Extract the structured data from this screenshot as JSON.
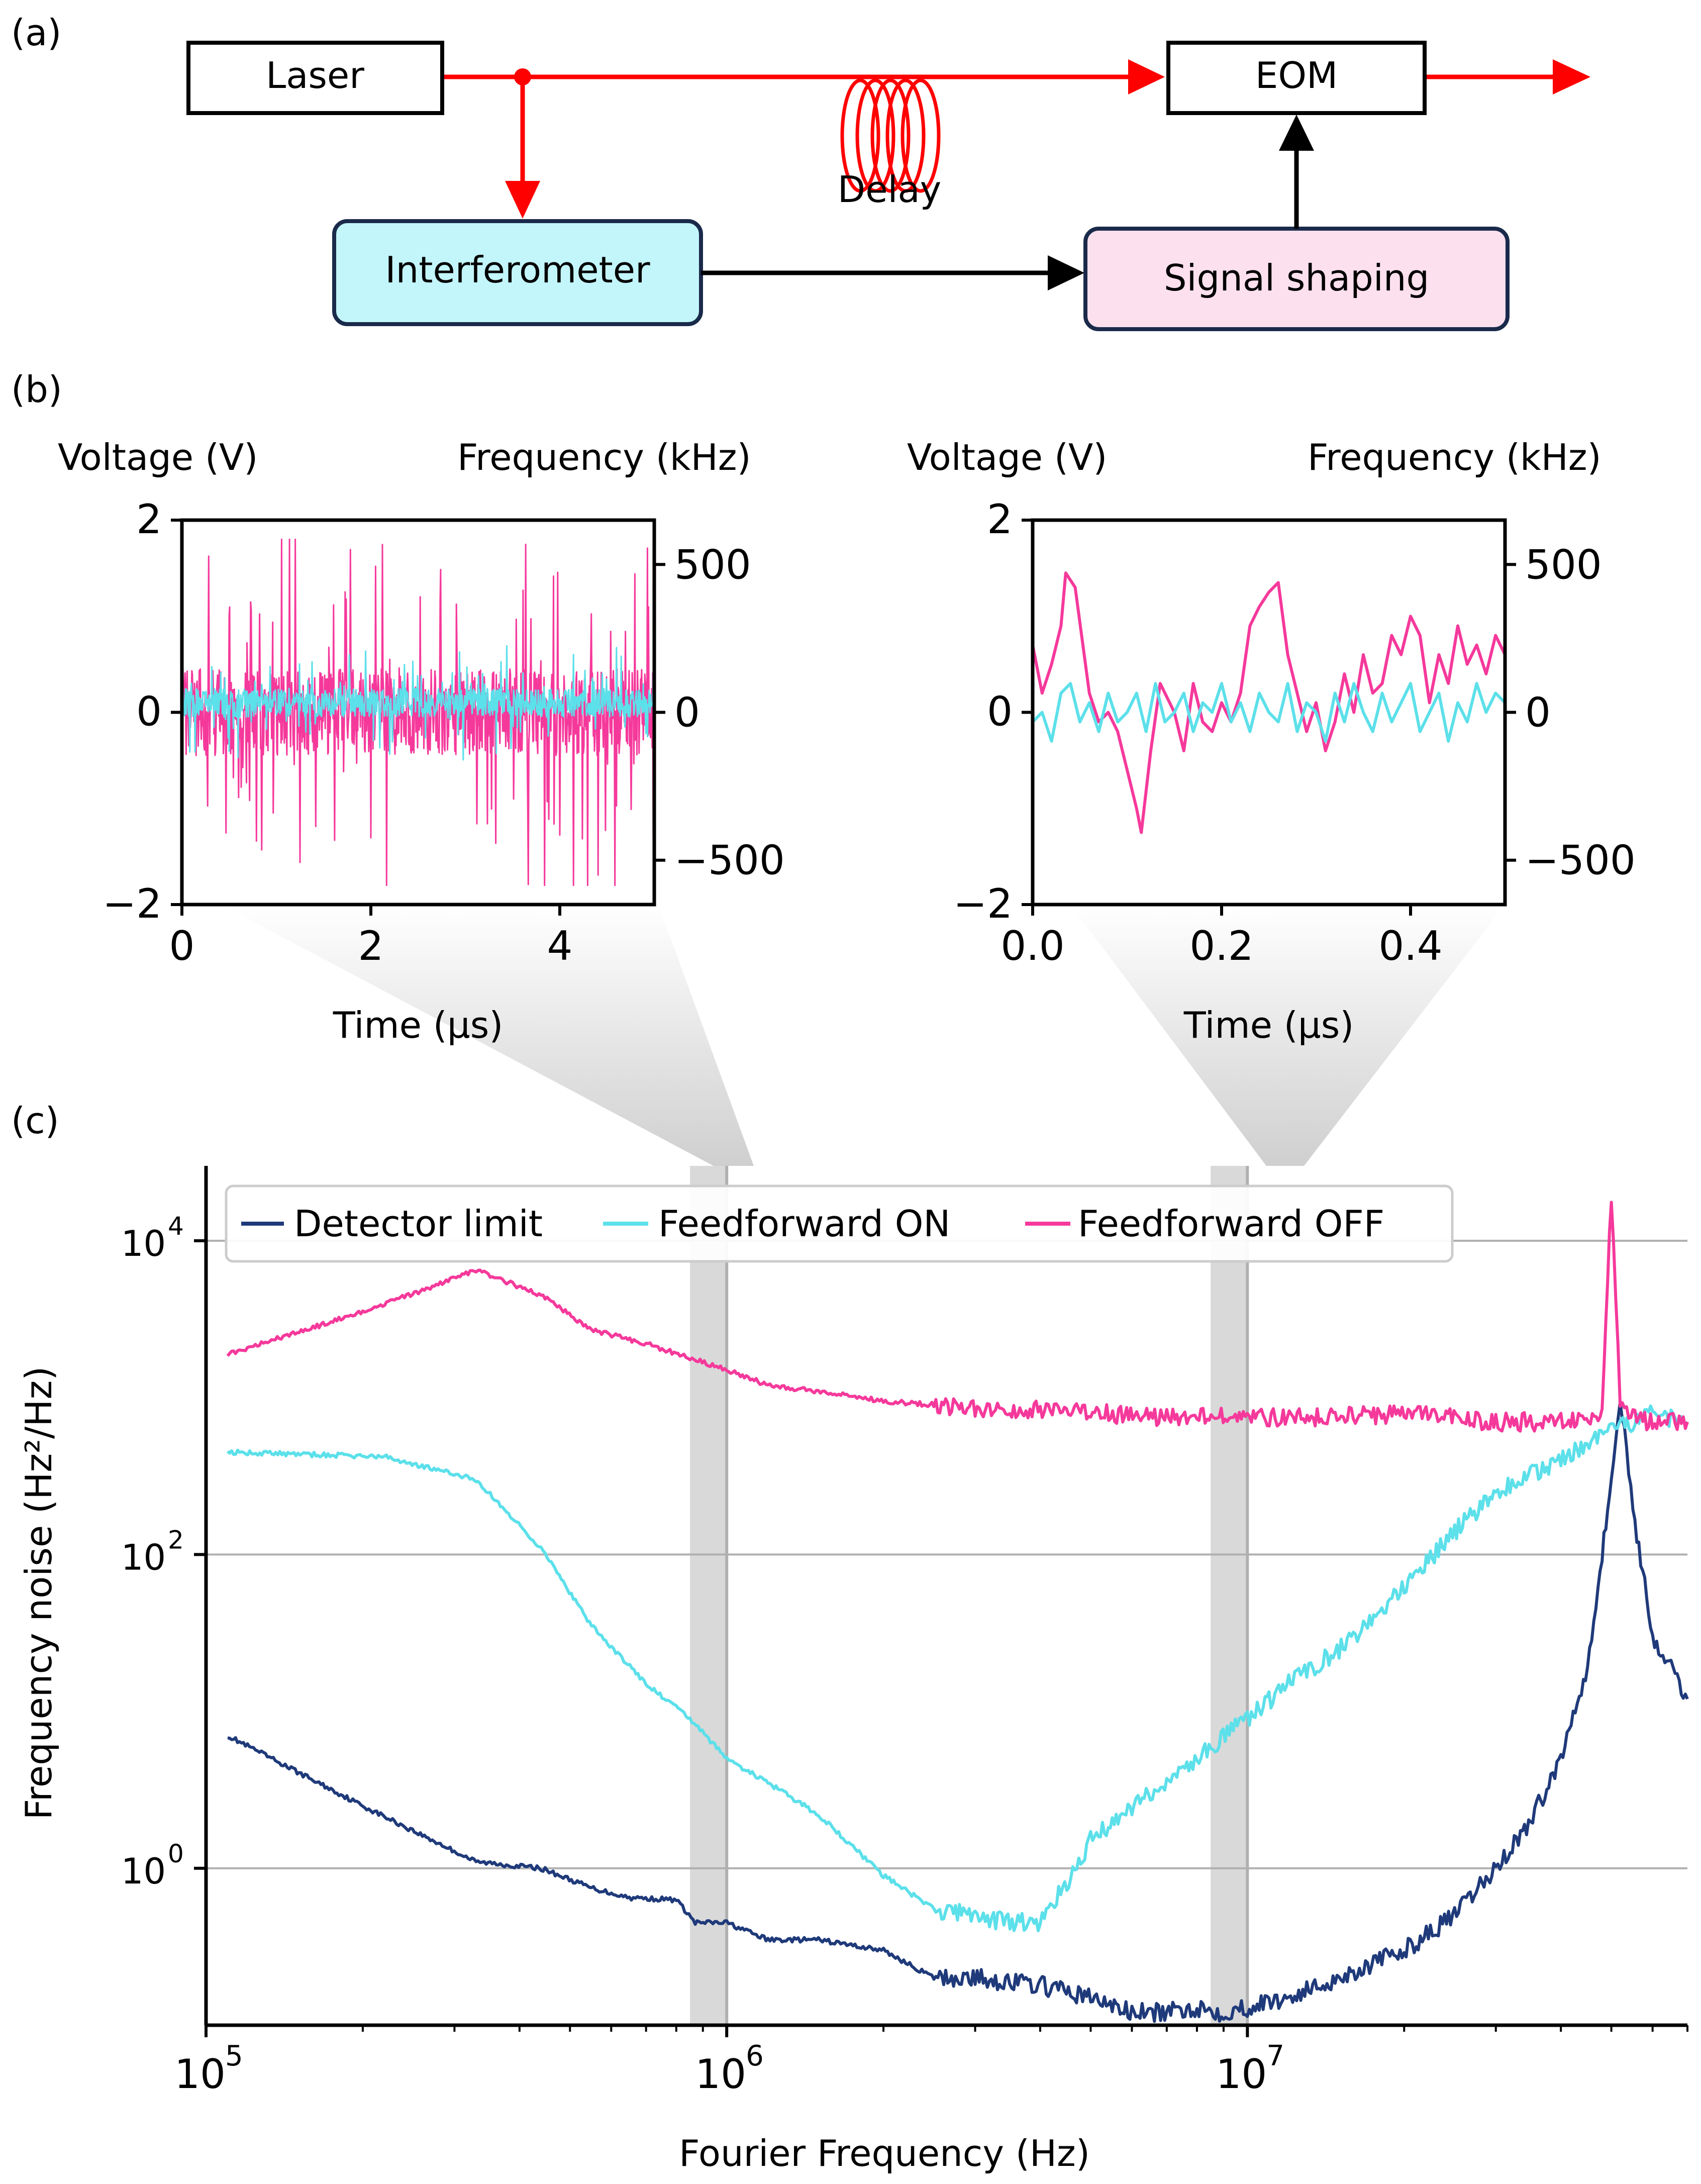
{
  "panels": {
    "a": "(a)",
    "b": "(b)",
    "c": "(c)"
  },
  "diagram": {
    "laser": "Laser",
    "eom": "EOM",
    "interferometer": "Interferometer",
    "signal_shaping": "Signal shaping",
    "delay": "Delay",
    "colors": {
      "beam": "#ff0000",
      "wire": "#000000",
      "interferometer_fill": "#c3f6fb",
      "shaping_fill": "#fde0ee",
      "box_edge": "#1a2a4a"
    }
  },
  "chart_data": [
    {
      "id": "b-left",
      "type": "line",
      "title": "",
      "xlabel": "Time (µs)",
      "ylabel": "Voltage (V)",
      "y2label": "Frequency (kHz)",
      "xlim": [
        0,
        5
      ],
      "ylim": [
        -2,
        2
      ],
      "y2lim": [
        -650,
        650
      ],
      "xticks": [
        "0",
        "2",
        "4"
      ],
      "yticks": [
        "−2",
        "0",
        "2"
      ],
      "y2ticks": [
        "−500",
        "0",
        "500"
      ],
      "series": [
        {
          "name": "Feedforward OFF",
          "color": "#f5399b",
          "amplitude_V": 1.8,
          "noise_rms_V": 0.45,
          "mean_V": 0.0
        },
        {
          "name": "Feedforward ON",
          "color": "#5ce0ea",
          "amplitude_V": 0.5,
          "noise_rms_V": 0.15,
          "mean_V": 0.1
        }
      ]
    },
    {
      "id": "b-right",
      "type": "line",
      "title": "",
      "xlabel": "Time (µs)",
      "ylabel": "Voltage (V)",
      "y2label": "Frequency (kHz)",
      "xlim": [
        0,
        0.5
      ],
      "ylim": [
        -2,
        2
      ],
      "y2lim": [
        -650,
        650
      ],
      "xticks": [
        "0.0",
        "0.2",
        "0.4"
      ],
      "yticks": [
        "−2",
        "0",
        "2"
      ],
      "y2ticks": [
        "−500",
        "0",
        "500"
      ],
      "series": [
        {
          "name": "Feedforward OFF",
          "color": "#f5399b",
          "x": [
            0.0,
            0.01,
            0.02,
            0.03,
            0.035,
            0.045,
            0.06,
            0.07,
            0.08,
            0.09,
            0.1,
            0.11,
            0.115,
            0.125,
            0.135,
            0.15,
            0.16,
            0.17,
            0.18,
            0.19,
            0.2,
            0.21,
            0.22,
            0.23,
            0.24,
            0.25,
            0.26,
            0.27,
            0.28,
            0.29,
            0.3,
            0.31,
            0.32,
            0.33,
            0.34,
            0.35,
            0.36,
            0.37,
            0.38,
            0.39,
            0.4,
            0.41,
            0.42,
            0.43,
            0.44,
            0.45,
            0.46,
            0.47,
            0.48,
            0.49,
            0.5
          ],
          "y": [
            0.7,
            0.2,
            0.5,
            0.9,
            1.45,
            1.3,
            0.2,
            -0.1,
            0.0,
            -0.2,
            -0.6,
            -1.0,
            -1.25,
            -0.4,
            0.3,
            0.0,
            -0.4,
            0.3,
            -0.1,
            -0.2,
            0.1,
            -0.1,
            0.2,
            0.9,
            1.1,
            1.25,
            1.35,
            0.6,
            0.2,
            -0.2,
            0.1,
            -0.4,
            -0.1,
            0.4,
            0.0,
            0.6,
            0.2,
            0.3,
            0.8,
            0.6,
            1.0,
            0.8,
            0.1,
            0.6,
            0.3,
            0.9,
            0.5,
            0.7,
            0.4,
            0.8,
            0.6
          ]
        },
        {
          "name": "Feedforward ON",
          "color": "#5ce0ea",
          "x": [
            0.0,
            0.01,
            0.02,
            0.03,
            0.04,
            0.05,
            0.06,
            0.07,
            0.08,
            0.09,
            0.1,
            0.11,
            0.12,
            0.13,
            0.14,
            0.15,
            0.16,
            0.17,
            0.18,
            0.19,
            0.2,
            0.21,
            0.22,
            0.23,
            0.24,
            0.25,
            0.26,
            0.27,
            0.28,
            0.29,
            0.3,
            0.31,
            0.32,
            0.33,
            0.34,
            0.35,
            0.36,
            0.37,
            0.38,
            0.39,
            0.4,
            0.41,
            0.42,
            0.43,
            0.44,
            0.45,
            0.46,
            0.47,
            0.48,
            0.49,
            0.5
          ],
          "y": [
            -0.1,
            0.0,
            -0.3,
            0.2,
            0.3,
            -0.1,
            0.1,
            -0.2,
            0.2,
            -0.1,
            0.0,
            0.2,
            -0.2,
            0.3,
            -0.1,
            0.0,
            0.2,
            -0.2,
            0.1,
            0.0,
            0.3,
            -0.1,
            0.1,
            -0.2,
            0.2,
            0.0,
            -0.1,
            0.3,
            -0.2,
            0.1,
            0.0,
            -0.3,
            0.2,
            -0.1,
            0.3,
            0.0,
            -0.2,
            0.2,
            -0.1,
            0.1,
            0.3,
            -0.2,
            0.0,
            0.2,
            -0.3,
            0.1,
            -0.1,
            0.3,
            0.0,
            0.2,
            0.1
          ]
        }
      ]
    },
    {
      "id": "c",
      "type": "line",
      "title": "",
      "xlabel": "Fourier Frequency (Hz)",
      "ylabel": "Frequency noise (Hz²/Hz)",
      "xscale": "log",
      "yscale": "log",
      "xlim": [
        100000,
        70000000
      ],
      "ylim": [
        0.1,
        30000
      ],
      "xticks": [
        {
          "base": "10",
          "exp": "5",
          "value": 100000
        },
        {
          "base": "10",
          "exp": "6",
          "value": 1000000
        },
        {
          "base": "10",
          "exp": "7",
          "value": 10000000
        }
      ],
      "yticks": [
        {
          "base": "10",
          "exp": "0",
          "value": 1
        },
        {
          "base": "10",
          "exp": "2",
          "value": 100
        },
        {
          "base": "10",
          "exp": "4",
          "value": 10000
        }
      ],
      "grid": "y",
      "legend_position": "top",
      "highlight_bands": [
        [
          850000,
          1000000
        ],
        [
          8500000,
          10000000
        ]
      ],
      "series": [
        {
          "name": "Detector limit",
          "color": "#1f3a7a",
          "x": [
            110000,
            200000,
            330000,
            440000,
            550000,
            650000,
            800000,
            870000,
            1000000,
            1200000,
            1500000,
            2000000,
            2500000,
            3000000,
            4000000,
            5000000,
            6000000,
            7000000,
            8000000,
            9000000,
            10000000,
            12000000,
            15000000,
            20000000,
            25000000,
            30000000,
            35000000,
            40000000,
            45000000,
            48000000,
            50000000,
            52000000,
            55000000,
            60000000,
            70000000
          ],
          "y": [
            7,
            2.5,
            1.1,
            1.0,
            0.75,
            0.65,
            0.63,
            0.45,
            0.45,
            0.35,
            0.35,
            0.3,
            0.2,
            0.2,
            0.18,
            0.15,
            0.12,
            0.12,
            0.13,
            0.12,
            0.13,
            0.15,
            0.2,
            0.3,
            0.5,
            1.0,
            2.0,
            5.0,
            20,
            100,
            300,
            1000,
            200,
            30,
            12
          ]
        },
        {
          "name": "Feedforward ON",
          "color": "#5ce0ea",
          "x": [
            110000,
            220000,
            330000,
            440000,
            550000,
            700000,
            850000,
            1000000,
            1200000,
            1500000,
            2000000,
            2500000,
            3000000,
            3500000,
            4000000,
            4500000,
            5000000,
            6000000,
            7000000,
            8000000,
            10000000,
            12000000,
            15000000,
            20000000,
            25000000,
            30000000,
            40000000,
            50000000,
            60000000,
            70000000
          ],
          "y": [
            450,
            420,
            300,
            110,
            35,
            15,
            9,
            5,
            3.5,
            2.2,
            0.9,
            0.55,
            0.5,
            0.45,
            0.45,
            0.8,
            1.5,
            2.5,
            3.5,
            5,
            9,
            15,
            25,
            60,
            140,
            250,
            400,
            600,
            800,
            700
          ]
        },
        {
          "name": "Feedforward OFF",
          "color": "#f5399b",
          "x": [
            110000,
            200000,
            330000,
            440000,
            550000,
            700000,
            850000,
            1000000,
            1200000,
            1500000,
            2000000,
            2500000,
            3000000,
            4000000,
            5000000,
            7000000,
            10000000,
            15000000,
            20000000,
            30000000,
            40000000,
            48000000,
            50000000,
            52000000,
            55000000,
            60000000,
            70000000
          ],
          "y": [
            1900,
            3500,
            6500,
            4500,
            2700,
            2200,
            1800,
            1500,
            1200,
            1100,
            950,
            900,
            850,
            850,
            800,
            750,
            750,
            750,
            800,
            700,
            700,
            800,
            20000,
            900,
            750,
            700,
            700
          ]
        }
      ]
    }
  ]
}
